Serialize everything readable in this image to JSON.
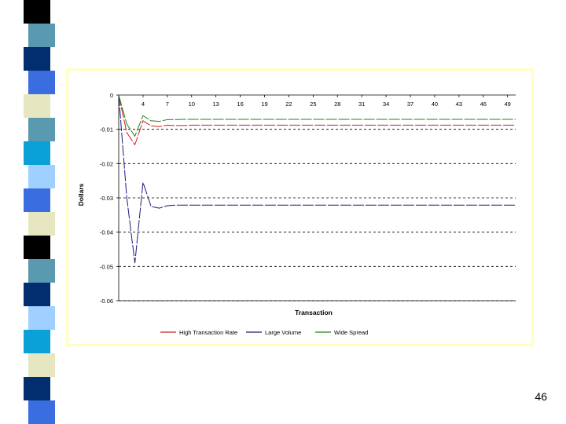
{
  "slide": {
    "number": "46"
  },
  "colors": {
    "frame_border": "#ffffc0",
    "stripe": [
      "#000000",
      "#5a9ab0",
      "#002e6e",
      "#3a6ee0",
      "#e6e6c0",
      "#5a9ab0",
      "#0aa0d8",
      "#a0d0ff",
      "#3a6ee0",
      "#e6e6c0",
      "#000000",
      "#5a9ab0",
      "#002e6e",
      "#a0d0ff",
      "#0aa0d8",
      "#e6e6c0",
      "#002e6e",
      "#3a6ee0"
    ]
  },
  "chart_data": {
    "type": "line",
    "xlabel": "Transaction",
    "ylabel": "Dollars",
    "x_ticks": [
      4,
      7,
      10,
      13,
      16,
      19,
      22,
      25,
      28,
      31,
      34,
      37,
      40,
      43,
      46,
      49
    ],
    "x_tick_labels": [
      "4",
      "7",
      "10",
      "13",
      "16",
      "19",
      "22",
      "25",
      "28",
      "31",
      "34",
      "37",
      "40",
      "43",
      "46",
      "49"
    ],
    "y_ticks": [
      0,
      -0.01,
      -0.02,
      -0.03,
      -0.04,
      -0.05,
      -0.06
    ],
    "y_tick_labels": [
      "0",
      "-0.01",
      "-0.02",
      "-0.03",
      "-0.04",
      "-0.05",
      "-0.06"
    ],
    "xlim": [
      1,
      50
    ],
    "ylim": [
      -0.06,
      0
    ],
    "grid": "horizontal-dashed",
    "legend_position": "bottom",
    "series": [
      {
        "name": "High Transaction Rate",
        "color": "#cc2020",
        "x": [
          1,
          2,
          3,
          4,
          5,
          6,
          7,
          8,
          9,
          10,
          13,
          16,
          19,
          22,
          25,
          28,
          31,
          34,
          37,
          40,
          43,
          46,
          50
        ],
        "values": [
          0,
          -0.011,
          -0.0145,
          -0.0075,
          -0.009,
          -0.0092,
          -0.0088,
          -0.0089,
          -0.0089,
          -0.0088,
          -0.0088,
          -0.0088,
          -0.0088,
          -0.0088,
          -0.0088,
          -0.0088,
          -0.0088,
          -0.0088,
          -0.0088,
          -0.0088,
          -0.0088,
          -0.0088,
          -0.0088
        ]
      },
      {
        "name": "Large Volume",
        "color": "#1a1a80",
        "x": [
          1,
          2,
          3,
          4,
          5,
          6,
          7,
          8,
          9,
          10,
          13,
          16,
          19,
          22,
          25,
          28,
          31,
          34,
          37,
          40,
          43,
          46,
          50
        ],
        "values": [
          0,
          -0.03,
          -0.049,
          -0.0255,
          -0.0325,
          -0.033,
          -0.0323,
          -0.0321,
          -0.0321,
          -0.0321,
          -0.0321,
          -0.0321,
          -0.0321,
          -0.0321,
          -0.0321,
          -0.0321,
          -0.0321,
          -0.0321,
          -0.0321,
          -0.0321,
          -0.0321,
          -0.0321,
          -0.0321
        ]
      },
      {
        "name": "Wide Spread",
        "color": "#208020",
        "x": [
          1,
          2,
          3,
          4,
          5,
          6,
          7,
          8,
          9,
          10,
          13,
          16,
          19,
          22,
          25,
          28,
          31,
          34,
          37,
          40,
          43,
          46,
          50
        ],
        "values": [
          0,
          -0.0085,
          -0.012,
          -0.006,
          -0.0075,
          -0.0077,
          -0.0072,
          -0.0072,
          -0.0071,
          -0.0071,
          -0.0071,
          -0.0071,
          -0.0071,
          -0.0071,
          -0.0071,
          -0.0071,
          -0.0071,
          -0.0071,
          -0.0071,
          -0.0071,
          -0.0071,
          -0.0071,
          -0.0071
        ]
      }
    ]
  }
}
